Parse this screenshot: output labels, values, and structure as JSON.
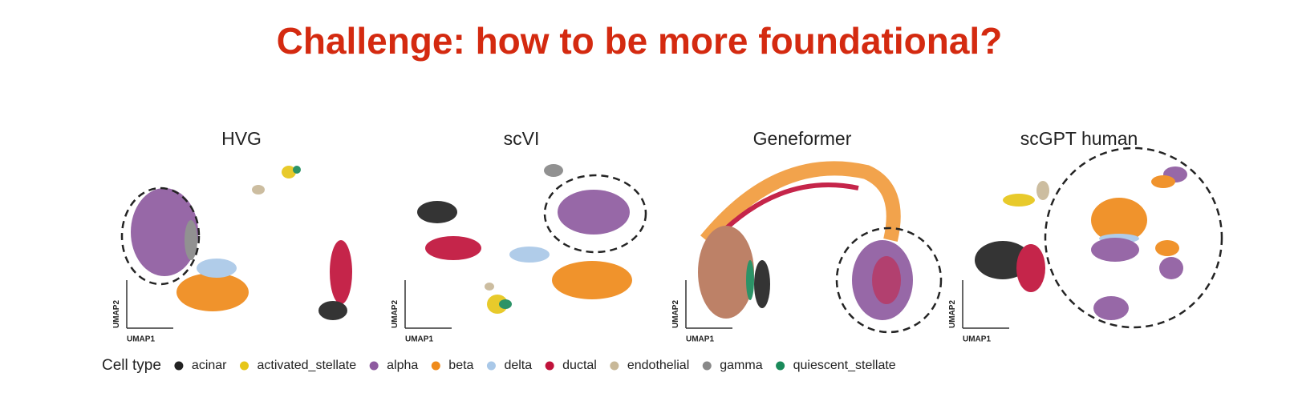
{
  "title": "Challenge: how to be more foundational?",
  "panels": [
    {
      "title": "HVG",
      "x_label": "UMAP1",
      "y_label": "UMAP2"
    },
    {
      "title": "scVI",
      "x_label": "UMAP1",
      "y_label": "UMAP2"
    },
    {
      "title": "Geneformer",
      "x_label": "UMAP1",
      "y_label": "UMAP2"
    },
    {
      "title": "scGPT human",
      "x_label": "UMAP1",
      "y_label": "UMAP2"
    }
  ],
  "legend": {
    "title": "Cell type",
    "items": [
      {
        "name": "acinar",
        "color": "#222222"
      },
      {
        "name": "activated_stellate",
        "color": "#e6c619"
      },
      {
        "name": "alpha",
        "color": "#8e5ba0"
      },
      {
        "name": "beta",
        "color": "#ef8a1a"
      },
      {
        "name": "delta",
        "color": "#a9c8e8"
      },
      {
        "name": "ductal",
        "color": "#c0123a"
      },
      {
        "name": "endothelial",
        "color": "#c8b898"
      },
      {
        "name": "gamma",
        "color": "#888888"
      },
      {
        "name": "quiescent_stellate",
        "color": "#1a8a5a"
      }
    ]
  }
}
